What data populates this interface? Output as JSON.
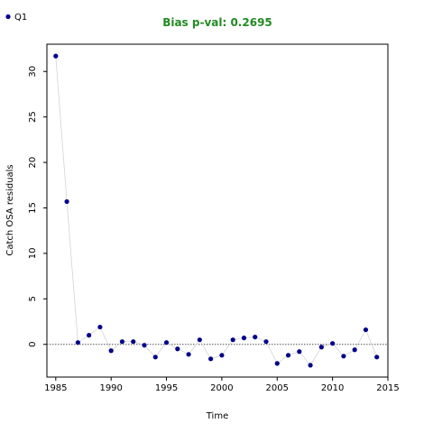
{
  "chart_data": {
    "type": "scatter",
    "title": "Bias p-val: 0.2695",
    "title_color": "#228B22",
    "xlabel": "Time",
    "ylabel": "Catch OSA residuals",
    "xlim": [
      1984.2,
      2015
    ],
    "ylim": [
      -3.6,
      33
    ],
    "x_ticks": [
      1985,
      1990,
      1995,
      2000,
      2005,
      2010,
      2015
    ],
    "y_ticks": [
      0,
      5,
      10,
      15,
      20,
      25,
      30
    ],
    "reference_line_y": 0,
    "connector_line": true,
    "grid": false,
    "legend_position": "top-left",
    "series": [
      {
        "name": "Q1",
        "color": "#00008B",
        "line_color": "#D3D3D3",
        "x": [
          1985,
          1986,
          1987,
          1988,
          1989,
          1990,
          1991,
          1992,
          1993,
          1994,
          1995,
          1996,
          1997,
          1998,
          1999,
          2000,
          2001,
          2002,
          2003,
          2004,
          2005,
          2006,
          2007,
          2008,
          2009,
          2010,
          2011,
          2012,
          2013,
          2014
        ],
        "y": [
          31.7,
          15.7,
          0.2,
          1.0,
          1.9,
          -0.7,
          0.3,
          0.3,
          -0.1,
          -1.4,
          0.2,
          -0.5,
          -1.1,
          0.5,
          -1.6,
          -1.2,
          0.5,
          0.7,
          0.8,
          0.3,
          -2.1,
          -1.2,
          -0.8,
          -2.3,
          -0.3,
          0.1,
          -1.3,
          -0.6,
          1.6,
          -1.4
        ]
      }
    ]
  }
}
